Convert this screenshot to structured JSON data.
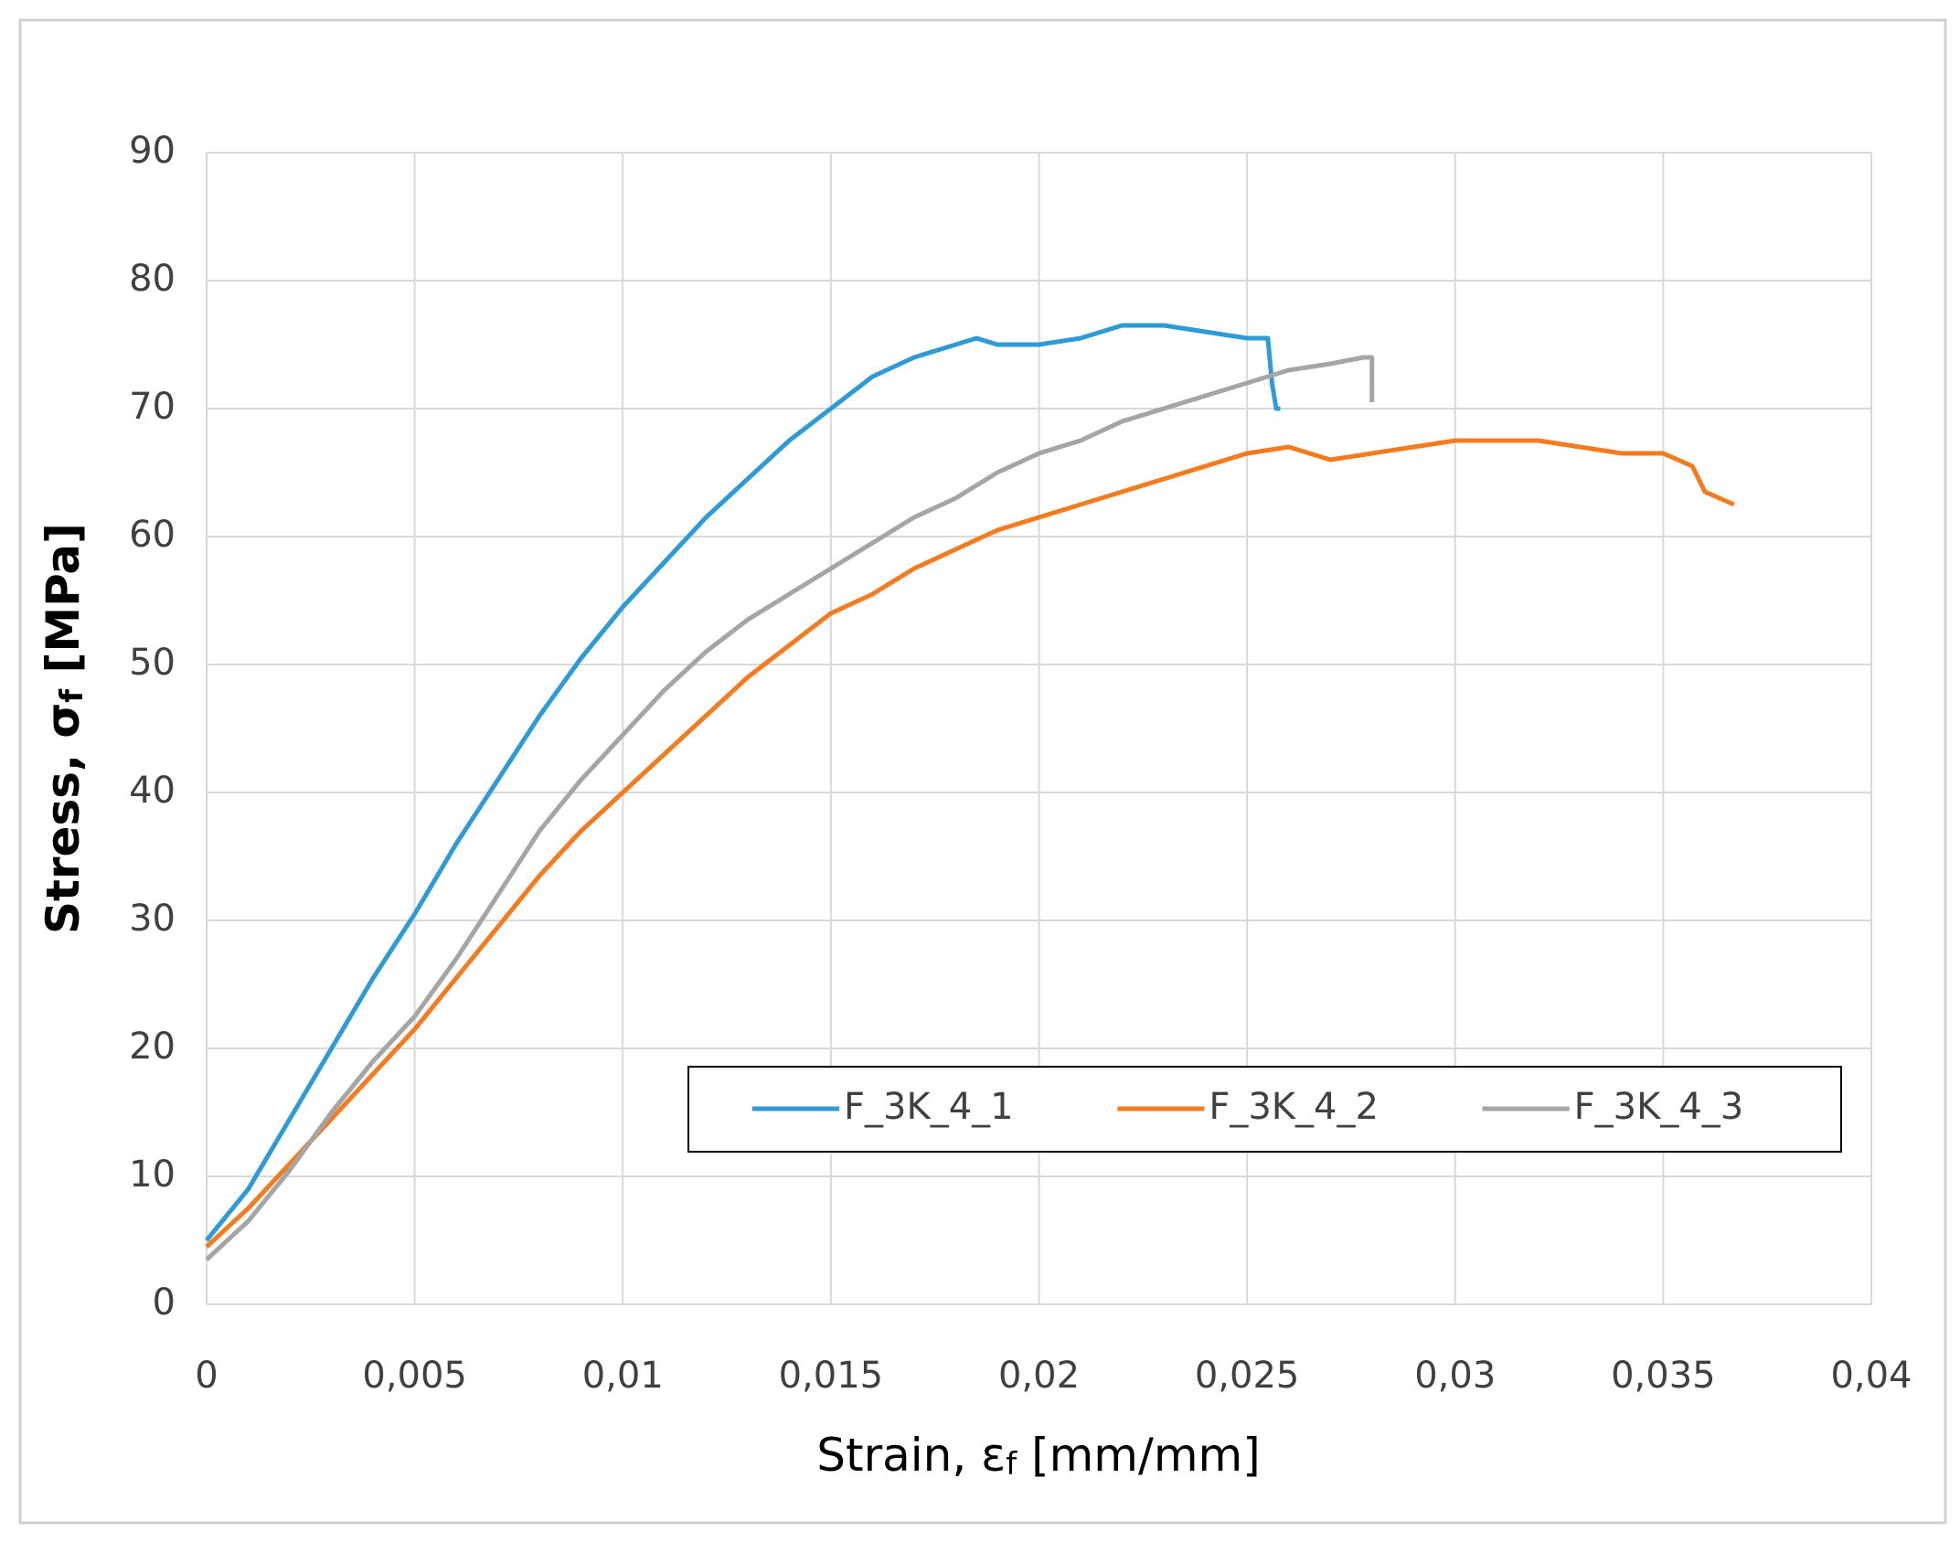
{
  "chart_data": {
    "type": "line",
    "x_label": [
      "Strain, ε",
      "f",
      " [mm/mm]"
    ],
    "y_label": [
      "Stress, σ",
      "f",
      " [MPa]"
    ],
    "xlim": [
      0,
      0.04
    ],
    "xticks": [
      0,
      {
        "value": 0.005,
        "label": "0,005"
      },
      {
        "value": 0.01,
        "label": "0,01"
      },
      {
        "value": 0.015,
        "label": "0,015"
      },
      {
        "value": 0.02,
        "label": "0,02"
      },
      {
        "value": 0.025,
        "label": "0,025"
      },
      {
        "value": 0.03,
        "label": "0,03"
      },
      {
        "value": 0.035,
        "label": "0,035"
      },
      {
        "value": 0.04,
        "label": "0,04"
      }
    ],
    "ylim": [
      0,
      90
    ],
    "yticks": [
      0,
      10,
      20,
      30,
      40,
      50,
      60,
      70,
      80,
      90
    ],
    "grid": true,
    "series": [
      {
        "name": "F_3K_4_1",
        "color": "#2e9bd6",
        "x": [
          0,
          0.001,
          0.002,
          0.003,
          0.004,
          0.005,
          0.006,
          0.007,
          0.008,
          0.009,
          0.01,
          0.011,
          0.012,
          0.013,
          0.014,
          0.015,
          0.016,
          0.017,
          0.018,
          0.0185,
          0.019,
          0.02,
          0.021,
          0.022,
          0.023,
          0.024,
          0.025,
          0.0255,
          0.0256,
          0.0257,
          0.0258
        ],
        "values": [
          5,
          9,
          14.5,
          20,
          25.5,
          30.5,
          36,
          41,
          46,
          50.5,
          54.5,
          58,
          61.5,
          64.5,
          67.5,
          70,
          72.5,
          74,
          75,
          75.5,
          75,
          75,
          75.5,
          76.5,
          76.5,
          76,
          75.5,
          75.5,
          72,
          70,
          70
        ]
      },
      {
        "name": "F_3K_4_2",
        "color": "#f47b20",
        "x": [
          0,
          0.001,
          0.002,
          0.003,
          0.004,
          0.005,
          0.006,
          0.007,
          0.008,
          0.009,
          0.01,
          0.011,
          0.012,
          0.013,
          0.014,
          0.015,
          0.016,
          0.017,
          0.018,
          0.019,
          0.02,
          0.021,
          0.022,
          0.023,
          0.024,
          0.025,
          0.026,
          0.0265,
          0.027,
          0.028,
          0.029,
          0.03,
          0.031,
          0.032,
          0.033,
          0.034,
          0.035,
          0.0357,
          0.036,
          0.0367
        ],
        "values": [
          4.5,
          7.5,
          11,
          14.5,
          18,
          21.5,
          25.5,
          29.5,
          33.5,
          37,
          40,
          43,
          46,
          49,
          51.5,
          54,
          55.5,
          57.5,
          59,
          60.5,
          61.5,
          62.5,
          63.5,
          64.5,
          65.5,
          66.5,
          67,
          66.5,
          66,
          66.5,
          67,
          67.5,
          67.5,
          67.5,
          67,
          66.5,
          66.5,
          65.5,
          63.5,
          62.5
        ]
      },
      {
        "name": "F_3K_4_3",
        "color": "#a5a5a5",
        "x": [
          0,
          0.001,
          0.002,
          0.003,
          0.004,
          0.005,
          0.006,
          0.007,
          0.008,
          0.009,
          0.01,
          0.011,
          0.012,
          0.013,
          0.014,
          0.015,
          0.016,
          0.017,
          0.018,
          0.019,
          0.02,
          0.021,
          0.022,
          0.023,
          0.024,
          0.025,
          0.026,
          0.027,
          0.0278,
          0.028,
          0.028
        ],
        "values": [
          3.5,
          6.5,
          10.5,
          15,
          19,
          22.5,
          27,
          32,
          37,
          41,
          44.5,
          48,
          51,
          53.5,
          55.5,
          57.5,
          59.5,
          61.5,
          63,
          65,
          66.5,
          67.5,
          69,
          70,
          71,
          72,
          73,
          73.5,
          74,
          74,
          70.5
        ]
      }
    ]
  }
}
